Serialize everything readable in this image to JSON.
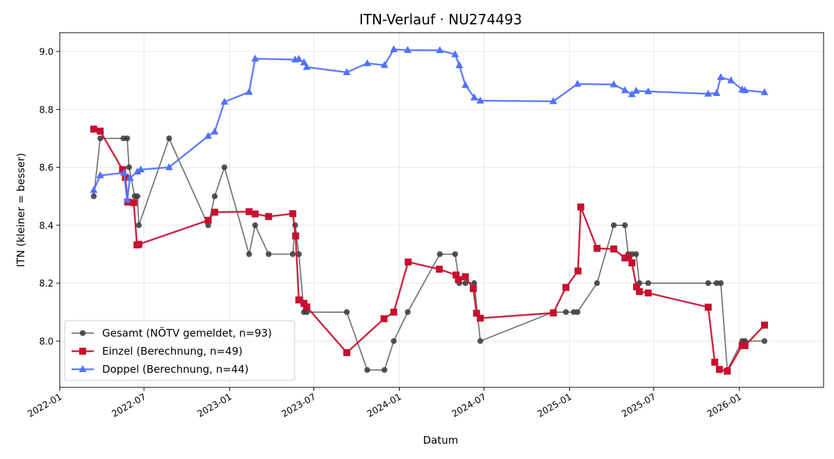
{
  "chart_data": {
    "type": "line",
    "title": "ITN-Verlauf · NU274493",
    "xlabel": "Datum",
    "ylabel": "ITN  (kleiner = besser)",
    "xlim": [
      "2022-01-01",
      "2026-07-01"
    ],
    "ylim": [
      7.84,
      9.065
    ],
    "x_ticks": [
      "2022-01",
      "2022-07",
      "2023-01",
      "2023-07",
      "2024-01",
      "2024-07",
      "2025-01",
      "2025-07",
      "2026-01"
    ],
    "y_ticks": [
      "8.0",
      "8.2",
      "8.4",
      "8.6",
      "8.8",
      "9.0"
    ],
    "grid": true,
    "legend_position": "lower-left",
    "series": [
      {
        "name": "Gesamt (NÖTV gemeldet, n=93)",
        "color": "#3a3a3a",
        "marker": "circle",
        "points": [
          [
            "2022-03-15",
            8.5
          ],
          [
            "2022-03-29",
            8.7
          ],
          [
            "2022-05-18",
            8.7
          ],
          [
            "2022-05-26",
            8.7
          ],
          [
            "2022-05-30",
            8.6
          ],
          [
            "2022-06-11",
            8.5
          ],
          [
            "2022-06-17",
            8.5
          ],
          [
            "2022-06-20",
            8.4
          ],
          [
            "2022-08-24",
            8.7
          ],
          [
            "2022-11-16",
            8.4
          ],
          [
            "2022-11-30",
            8.5
          ],
          [
            "2022-12-21",
            8.6
          ],
          [
            "2023-02-12",
            8.3
          ],
          [
            "2023-02-25",
            8.4
          ],
          [
            "2023-03-26",
            8.3
          ],
          [
            "2023-05-17",
            8.3
          ],
          [
            "2023-05-22",
            8.4
          ],
          [
            "2023-05-30",
            8.3
          ],
          [
            "2023-06-10",
            8.1
          ],
          [
            "2023-06-16",
            8.1
          ],
          [
            "2023-09-10",
            8.1
          ],
          [
            "2023-10-24",
            7.9
          ],
          [
            "2023-11-30",
            7.9
          ],
          [
            "2023-12-20",
            8.0
          ],
          [
            "2024-01-19",
            8.1
          ],
          [
            "2024-03-28",
            8.3
          ],
          [
            "2024-04-30",
            8.3
          ],
          [
            "2024-05-09",
            8.2
          ],
          [
            "2024-05-22",
            8.2
          ],
          [
            "2024-06-10",
            8.2
          ],
          [
            "2024-06-23",
            8.0
          ],
          [
            "2024-11-27",
            8.1
          ],
          [
            "2024-12-24",
            8.1
          ],
          [
            "2025-01-10",
            8.1
          ],
          [
            "2025-01-18",
            8.1
          ],
          [
            "2025-03-01",
            8.2
          ],
          [
            "2025-04-06",
            8.4
          ],
          [
            "2025-04-30",
            8.4
          ],
          [
            "2025-05-07",
            8.3
          ],
          [
            "2025-05-15",
            8.3
          ],
          [
            "2025-05-24",
            8.3
          ],
          [
            "2025-05-31",
            8.2
          ],
          [
            "2025-06-19",
            8.2
          ],
          [
            "2025-10-26",
            8.2
          ],
          [
            "2025-11-13",
            8.2
          ],
          [
            "2025-11-22",
            8.2
          ],
          [
            "2025-12-06",
            7.9
          ],
          [
            "2026-01-07",
            8.0
          ],
          [
            "2026-01-13",
            8.0
          ],
          [
            "2026-02-24",
            8.0
          ]
        ]
      },
      {
        "name": "Einzel (Berechnung, n=49)",
        "color": "#c8102e",
        "marker": "square",
        "points": [
          [
            "2022-03-15",
            8.732
          ],
          [
            "2022-03-29",
            8.725
          ],
          [
            "2022-05-16",
            8.592
          ],
          [
            "2022-05-22",
            8.565
          ],
          [
            "2022-05-27",
            8.48
          ],
          [
            "2022-06-09",
            8.478
          ],
          [
            "2022-06-16",
            8.332
          ],
          [
            "2022-06-20",
            8.334
          ],
          [
            "2022-11-16",
            8.417
          ],
          [
            "2022-11-30",
            8.445
          ],
          [
            "2023-02-12",
            8.447
          ],
          [
            "2023-02-25",
            8.439
          ],
          [
            "2023-03-26",
            8.43
          ],
          [
            "2023-05-17",
            8.44
          ],
          [
            "2023-05-23",
            8.363
          ],
          [
            "2023-05-30",
            8.142
          ],
          [
            "2023-06-10",
            8.13
          ],
          [
            "2023-06-16",
            8.118
          ],
          [
            "2023-09-10",
            7.96
          ],
          [
            "2023-11-29",
            8.077
          ],
          [
            "2023-12-20",
            8.1
          ],
          [
            "2024-01-20",
            8.273
          ],
          [
            "2024-03-27",
            8.248
          ],
          [
            "2024-05-02",
            8.228
          ],
          [
            "2024-05-07",
            8.212
          ],
          [
            "2024-05-22",
            8.222
          ],
          [
            "2024-06-08",
            8.181
          ],
          [
            "2024-06-15",
            8.096
          ],
          [
            "2024-06-23",
            8.079
          ],
          [
            "2024-11-27",
            8.097
          ],
          [
            "2024-12-24",
            8.185
          ],
          [
            "2025-01-19",
            8.242
          ],
          [
            "2025-01-25",
            8.463
          ],
          [
            "2025-03-01",
            8.32
          ],
          [
            "2025-04-06",
            8.318
          ],
          [
            "2025-04-30",
            8.287
          ],
          [
            "2025-05-08",
            8.29
          ],
          [
            "2025-05-15",
            8.27
          ],
          [
            "2025-05-25",
            8.187
          ],
          [
            "2025-05-31",
            8.171
          ],
          [
            "2025-06-19",
            8.166
          ],
          [
            "2025-10-26",
            8.117
          ],
          [
            "2025-11-09",
            7.927
          ],
          [
            "2025-11-19",
            7.902
          ],
          [
            "2025-12-06",
            7.896
          ],
          [
            "2026-01-07",
            7.985
          ],
          [
            "2026-01-13",
            7.984
          ],
          [
            "2026-02-24",
            8.055
          ]
        ]
      },
      {
        "name": "Doppel (Berechnung, n=44)",
        "color": "#5271ff",
        "marker": "triangle",
        "points": [
          [
            "2022-03-15",
            8.521
          ],
          [
            "2022-03-29",
            8.572
          ],
          [
            "2022-05-19",
            8.581
          ],
          [
            "2022-05-26",
            8.488
          ],
          [
            "2022-06-01",
            8.563
          ],
          [
            "2022-06-17",
            8.585
          ],
          [
            "2022-06-24",
            8.592
          ],
          [
            "2022-08-24",
            8.6
          ],
          [
            "2022-11-16",
            8.708
          ],
          [
            "2022-11-30",
            8.723
          ],
          [
            "2022-12-21",
            8.826
          ],
          [
            "2023-02-12",
            8.86
          ],
          [
            "2023-02-25",
            8.975
          ],
          [
            "2023-05-22",
            8.972
          ],
          [
            "2023-05-30",
            8.974
          ],
          [
            "2023-06-10",
            8.962
          ],
          [
            "2023-06-16",
            8.946
          ],
          [
            "2023-09-10",
            8.928
          ],
          [
            "2023-10-24",
            8.959
          ],
          [
            "2023-11-30",
            8.953
          ],
          [
            "2023-12-20",
            9.007
          ],
          [
            "2024-01-19",
            9.005
          ],
          [
            "2024-03-28",
            9.004
          ],
          [
            "2024-04-30",
            8.99
          ],
          [
            "2024-05-09",
            8.952
          ],
          [
            "2024-05-22",
            8.884
          ],
          [
            "2024-06-10",
            8.841
          ],
          [
            "2024-06-23",
            8.83
          ],
          [
            "2024-11-27",
            8.828
          ],
          [
            "2025-01-18",
            8.888
          ],
          [
            "2025-04-06",
            8.886
          ],
          [
            "2025-04-30",
            8.866
          ],
          [
            "2025-05-15",
            8.852
          ],
          [
            "2025-05-24",
            8.864
          ],
          [
            "2025-06-19",
            8.862
          ],
          [
            "2025-10-26",
            8.854
          ],
          [
            "2025-11-13",
            8.856
          ],
          [
            "2025-11-22",
            8.911
          ],
          [
            "2025-12-14",
            8.9
          ],
          [
            "2026-01-07",
            8.868
          ],
          [
            "2026-01-13",
            8.866
          ],
          [
            "2026-02-24",
            8.859
          ]
        ]
      }
    ]
  }
}
